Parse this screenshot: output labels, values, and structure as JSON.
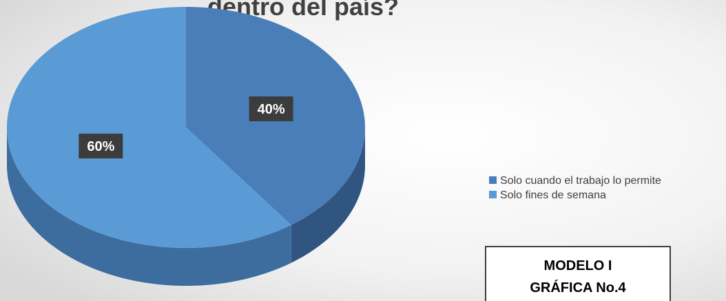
{
  "chart_data": {
    "type": "pie",
    "title": "dentro del país?",
    "categories": [
      "Solo cuando el trabajo lo permite",
      "Solo fines de semana"
    ],
    "values": [
      40,
      60
    ],
    "value_labels": [
      "40%",
      "60%"
    ],
    "colors": [
      "#4a7eb8",
      "#5b9bd5"
    ],
    "side_colors": [
      "#2f5580",
      "#3d6d9e"
    ],
    "legend": "right"
  },
  "annotation": {
    "lines": [
      "MODELO I",
      "GRÁFICA No.4"
    ]
  }
}
